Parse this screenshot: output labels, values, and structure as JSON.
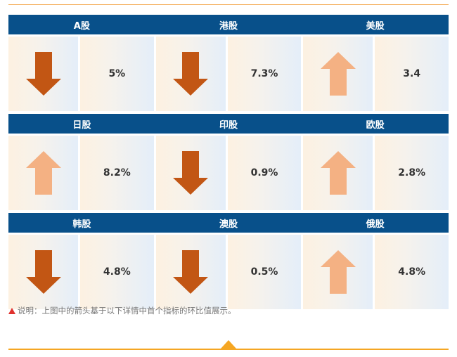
{
  "colors": {
    "header_bg": "#08508a",
    "arrow_down": "#c25614",
    "arrow_up": "#f4b183",
    "note_marker": "#e0322e",
    "accent_line": "#f5a623"
  },
  "markets": [
    {
      "name": "A股",
      "direction": "down",
      "value": "5%"
    },
    {
      "name": "港股",
      "direction": "down",
      "value": "7.3%"
    },
    {
      "name": "美股",
      "direction": "up",
      "value": "3.4"
    },
    {
      "name": "日股",
      "direction": "up",
      "value": "8.2%"
    },
    {
      "name": "印股",
      "direction": "down",
      "value": "0.9%"
    },
    {
      "name": "欧股",
      "direction": "up",
      "value": "2.8%"
    },
    {
      "name": "韩股",
      "direction": "down",
      "value": "4.8%"
    },
    {
      "name": "澳股",
      "direction": "down",
      "value": "0.5%"
    },
    {
      "name": "俄股",
      "direction": "up",
      "value": "4.8%"
    }
  ],
  "note": {
    "icon": "warning-triangle-icon",
    "text": "说明：上图中的箭头基于以下详情中首个指标的环比值展示。"
  }
}
